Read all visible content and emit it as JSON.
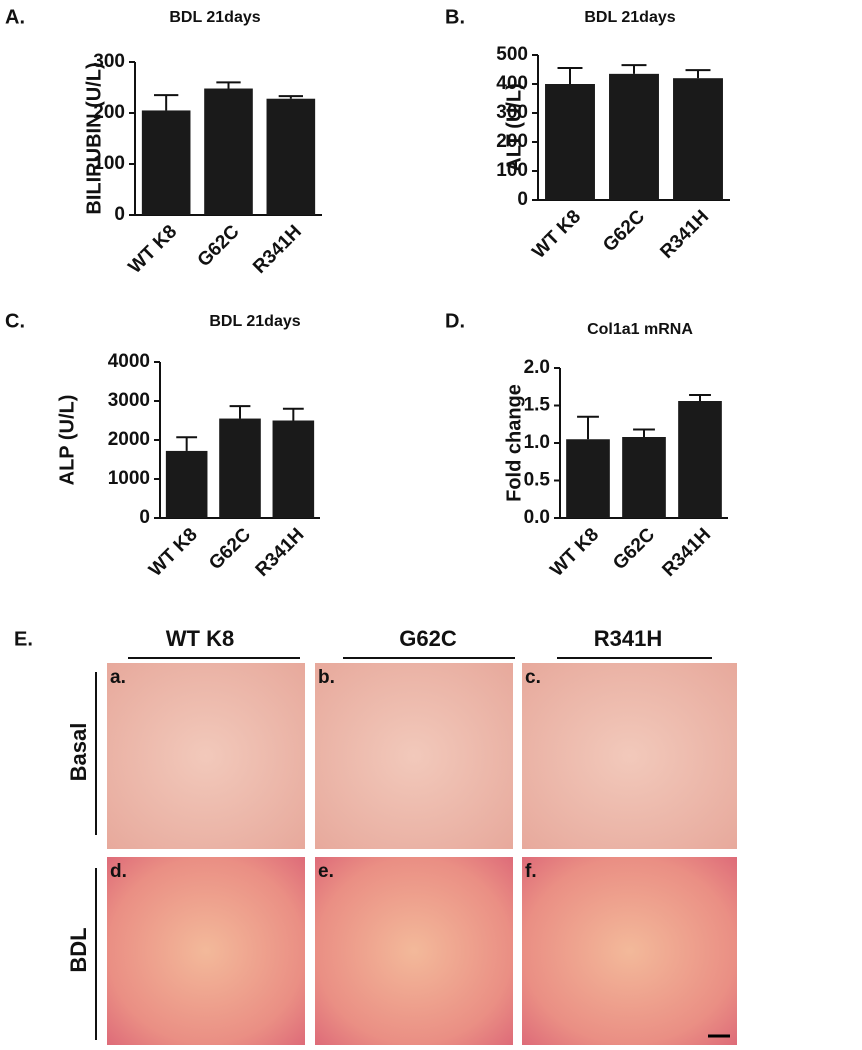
{
  "chart_data": [
    {
      "type": "bar",
      "panel_label": "A.",
      "title": "BDL 21days",
      "y_label": "BILIRUBIN (U/L)",
      "categories": [
        "WT K8",
        "G62C",
        "R341H"
      ],
      "values": [
        205,
        248,
        228
      ],
      "errors": [
        30,
        12,
        5
      ],
      "color": "#1a1a1a",
      "ylim": [
        0,
        300
      ],
      "yticks": [
        0,
        100,
        200,
        300
      ]
    },
    {
      "type": "bar",
      "panel_label": "B.",
      "title": "BDL 21days",
      "y_label": "ALT (U/L)",
      "categories": [
        "WT K8",
        "G62C",
        "R341H"
      ],
      "values": [
        400,
        435,
        420
      ],
      "errors": [
        55,
        30,
        28
      ],
      "color": "#1a1a1a",
      "ylim": [
        0,
        500
      ],
      "yticks": [
        0,
        100,
        200,
        300,
        400,
        500
      ]
    },
    {
      "type": "bar",
      "panel_label": "C.",
      "title": "BDL 21days",
      "y_label": "ALP (U/L)",
      "categories": [
        "WT K8",
        "G62C",
        "R341H"
      ],
      "values": [
        1720,
        2550,
        2500
      ],
      "errors": [
        350,
        320,
        300
      ],
      "color": "#1a1a1a",
      "ylim": [
        0,
        4000
      ],
      "yticks": [
        0,
        1000,
        2000,
        3000,
        4000
      ]
    },
    {
      "type": "bar",
      "panel_label": "D.",
      "title": "Col1a1 mRNA",
      "y_label": "Fold change",
      "categories": [
        "WT K8",
        "G62C",
        "R341H"
      ],
      "values": [
        1.05,
        1.08,
        1.56
      ],
      "errors": [
        0.3,
        0.1,
        0.08
      ],
      "color": "#1a1a1a",
      "ylim": [
        0,
        2.0
      ],
      "yticks": [
        {
          "value": 0,
          "label": "0.0"
        },
        0.5,
        {
          "value": 1,
          "label": "1.0"
        },
        1.5,
        {
          "value": 2,
          "label": "2.0"
        }
      ]
    }
  ],
  "panel_e": {
    "label": "E.",
    "columns": [
      "WT K8",
      "G62C",
      "R341H"
    ],
    "rows": [
      "Basal",
      "BDL"
    ],
    "panels": [
      "a.",
      "b.",
      "c.",
      "d.",
      "e.",
      "f."
    ]
  }
}
